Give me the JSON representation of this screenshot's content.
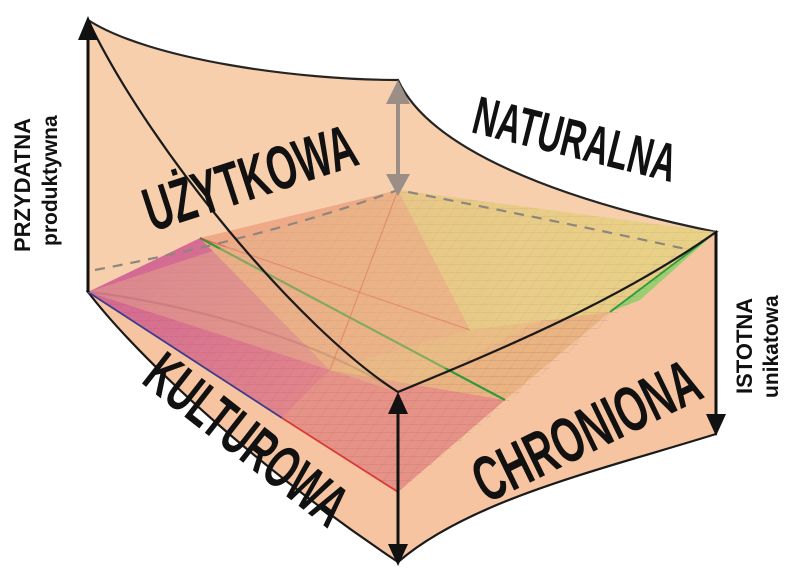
{
  "labels": {
    "uzytkowa": "UŻYTKOWA",
    "naturalna": "NATURALNA",
    "kulturowa": "KULTUROWA",
    "chroniona": "CHRONIONA",
    "przydatna": "PRZYDATNA",
    "produktywna": "produktywna",
    "istotna": "ISTOTNA",
    "unikatowa": "unikatowa"
  },
  "colors": {
    "surface_fill": "#f6c9a3",
    "surface_light": "#fbe2cc",
    "surface_edge": "#1a1a1a",
    "plane_top": "#e8c08a",
    "plane_yellow": "#e7d27c",
    "plane_pink": "#d9708f",
    "plane_red": "#e07f73",
    "plane_green": "#8cc968",
    "grid_line": "#8a6a6a",
    "line_red": "#d83a3a",
    "line_green": "#2e9a3c",
    "line_blue": "#3c3c8c",
    "arrow": "#111111",
    "arrow_grey": "#9a8e86",
    "label_main": "#111111",
    "label_faint": "#8f8b86"
  }
}
